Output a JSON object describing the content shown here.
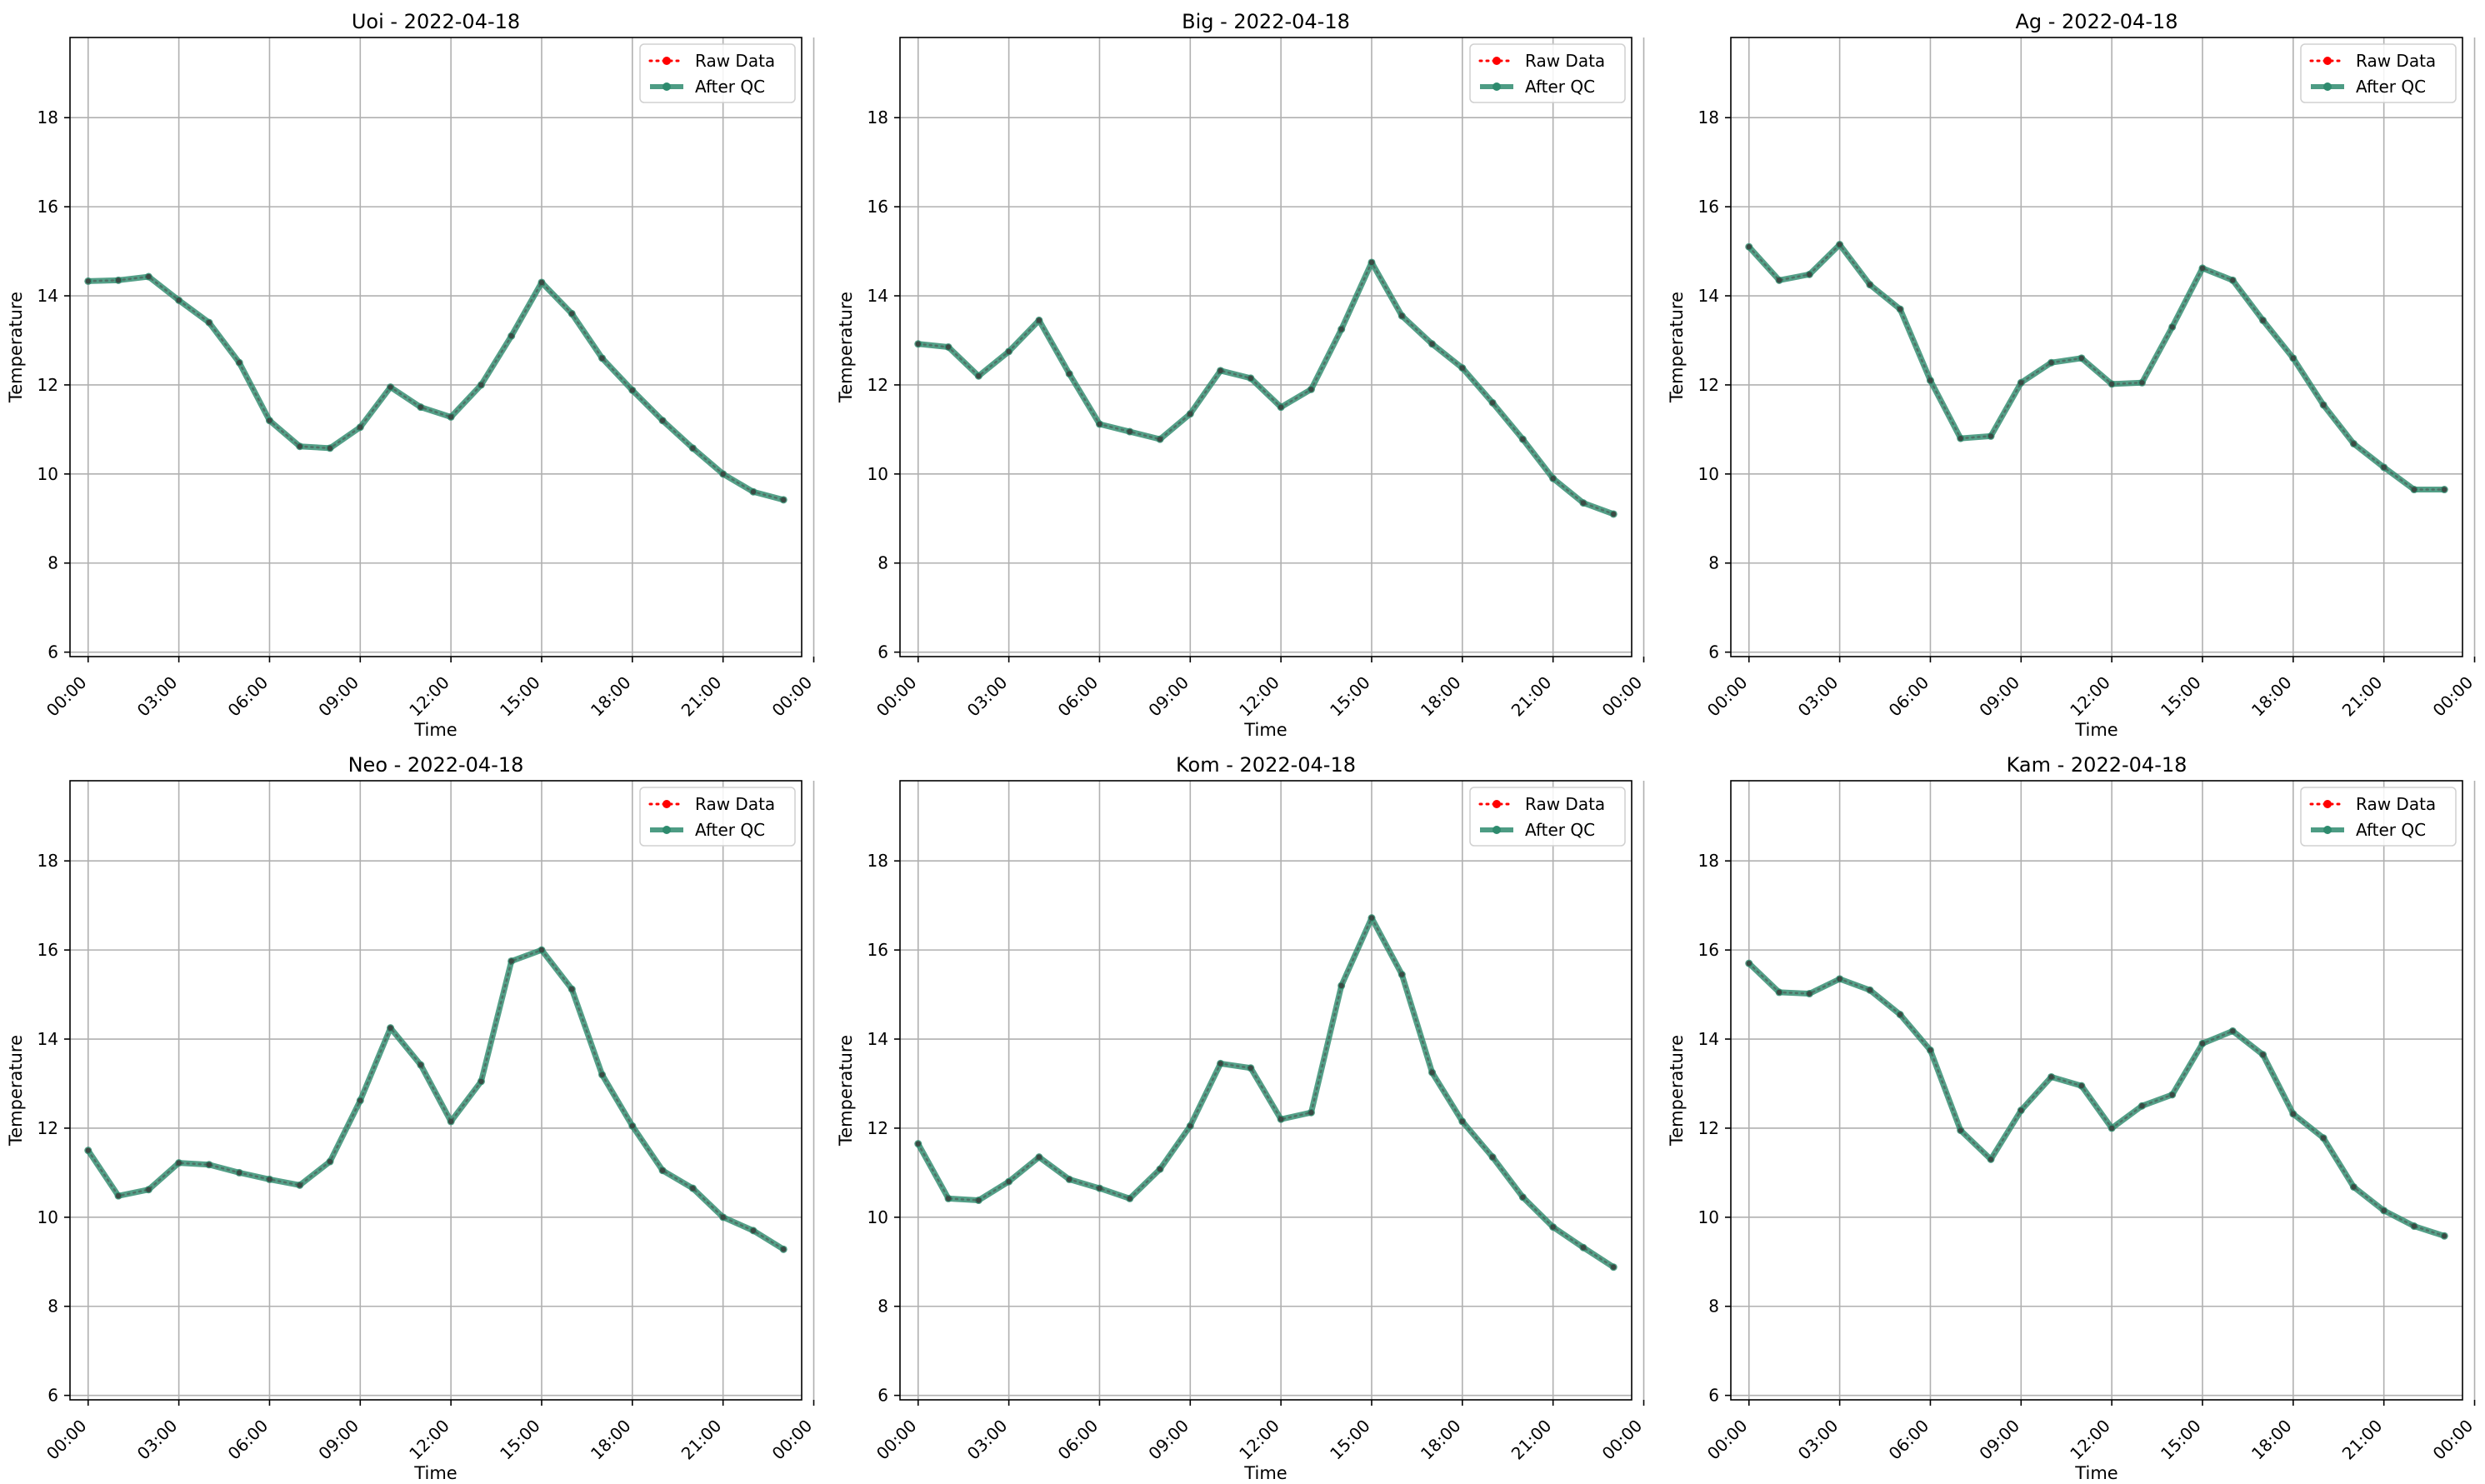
{
  "chart_data": [
    {
      "type": "line",
      "title": "Uoi - 2022-04-18",
      "xlabel": "Time",
      "ylabel": "Temperature",
      "ylim": [
        5.9,
        19.8
      ],
      "yticks": [
        6,
        8,
        10,
        12,
        14,
        16,
        18
      ],
      "xlim": [
        -0.6,
        23.6
      ],
      "xticks": [
        "00:00",
        "03:00",
        "06:00",
        "09:00",
        "12:00",
        "15:00",
        "18:00",
        "21:00",
        "00:00"
      ],
      "grid": true,
      "legend": "top-right",
      "x": [
        "00:00",
        "01:00",
        "02:00",
        "03:00",
        "04:00",
        "05:00",
        "06:00",
        "07:00",
        "08:00",
        "09:00",
        "10:00",
        "11:00",
        "12:00",
        "13:00",
        "14:00",
        "15:00",
        "16:00",
        "17:00",
        "18:00",
        "19:00",
        "20:00",
        "21:00",
        "22:00",
        "23:00"
      ],
      "series": [
        {
          "name": "Raw Data",
          "color": "#ff0000",
          "values": [
            14.33,
            14.35,
            14.43,
            13.9,
            13.4,
            12.5,
            11.2,
            10.62,
            10.58,
            11.05,
            11.95,
            11.5,
            11.28,
            12.0,
            13.1,
            14.3,
            13.6,
            12.6,
            11.88,
            11.2,
            10.58,
            10.0,
            9.6,
            9.42
          ]
        },
        {
          "name": "After QC",
          "color": "#2e8b6e",
          "values": [
            14.33,
            14.35,
            14.43,
            13.9,
            13.4,
            12.5,
            11.2,
            10.62,
            10.58,
            11.05,
            11.95,
            11.5,
            11.28,
            12.0,
            13.1,
            14.3,
            13.6,
            12.6,
            11.88,
            11.2,
            10.58,
            10.0,
            9.6,
            9.42
          ]
        }
      ]
    },
    {
      "type": "line",
      "title": "Big - 2022-04-18",
      "xlabel": "Time",
      "ylabel": "Temperature",
      "ylim": [
        5.9,
        19.8
      ],
      "yticks": [
        6,
        8,
        10,
        12,
        14,
        16,
        18
      ],
      "xlim": [
        -0.6,
        23.6
      ],
      "xticks": [
        "00:00",
        "03:00",
        "06:00",
        "09:00",
        "12:00",
        "15:00",
        "18:00",
        "21:00",
        "00:00"
      ],
      "grid": true,
      "legend": "top-right",
      "x": [
        "00:00",
        "01:00",
        "02:00",
        "03:00",
        "04:00",
        "05:00",
        "06:00",
        "07:00",
        "08:00",
        "09:00",
        "10:00",
        "11:00",
        "12:00",
        "13:00",
        "14:00",
        "15:00",
        "16:00",
        "17:00",
        "18:00",
        "19:00",
        "20:00",
        "21:00",
        "22:00",
        "23:00"
      ],
      "series": [
        {
          "name": "Raw Data",
          "color": "#ff0000",
          "values": [
            12.92,
            12.85,
            12.2,
            12.75,
            13.45,
            12.25,
            11.12,
            10.95,
            10.78,
            11.35,
            12.32,
            12.15,
            11.5,
            11.9,
            13.25,
            14.75,
            13.55,
            12.92,
            12.38,
            11.6,
            10.78,
            9.9,
            9.35,
            9.1
          ]
        },
        {
          "name": "After QC",
          "color": "#2e8b6e",
          "values": [
            12.92,
            12.85,
            12.2,
            12.75,
            13.45,
            12.25,
            11.12,
            10.95,
            10.78,
            11.35,
            12.32,
            12.15,
            11.5,
            11.9,
            13.25,
            14.75,
            13.55,
            12.92,
            12.38,
            11.6,
            10.78,
            9.9,
            9.35,
            9.1
          ]
        }
      ]
    },
    {
      "type": "line",
      "title": "Ag - 2022-04-18",
      "xlabel": "Time",
      "ylabel": "Temperature",
      "ylim": [
        5.9,
        19.8
      ],
      "yticks": [
        6,
        8,
        10,
        12,
        14,
        16,
        18
      ],
      "xlim": [
        -0.6,
        23.6
      ],
      "xticks": [
        "00:00",
        "03:00",
        "06:00",
        "09:00",
        "12:00",
        "15:00",
        "18:00",
        "21:00",
        "00:00"
      ],
      "grid": true,
      "legend": "top-right",
      "x": [
        "00:00",
        "01:00",
        "02:00",
        "03:00",
        "04:00",
        "05:00",
        "06:00",
        "07:00",
        "08:00",
        "09:00",
        "10:00",
        "11:00",
        "12:00",
        "13:00",
        "14:00",
        "15:00",
        "16:00",
        "17:00",
        "18:00",
        "19:00",
        "20:00",
        "21:00",
        "22:00",
        "23:00"
      ],
      "series": [
        {
          "name": "Raw Data",
          "color": "#ff0000",
          "values": [
            15.1,
            14.35,
            14.48,
            15.15,
            14.25,
            13.7,
            12.1,
            10.8,
            10.85,
            12.05,
            12.5,
            12.6,
            12.02,
            12.05,
            13.3,
            14.62,
            14.35,
            13.45,
            12.6,
            11.55,
            10.68,
            10.15,
            9.65,
            9.65
          ]
        },
        {
          "name": "After QC",
          "color": "#2e8b6e",
          "values": [
            15.1,
            14.35,
            14.48,
            15.15,
            14.25,
            13.7,
            12.1,
            10.8,
            10.85,
            12.05,
            12.5,
            12.6,
            12.02,
            12.05,
            13.3,
            14.62,
            14.35,
            13.45,
            12.6,
            11.55,
            10.68,
            10.15,
            9.65,
            9.65
          ]
        }
      ]
    },
    {
      "type": "line",
      "title": "Neo - 2022-04-18",
      "xlabel": "Time",
      "ylabel": "Temperature",
      "ylim": [
        5.9,
        19.8
      ],
      "yticks": [
        6,
        8,
        10,
        12,
        14,
        16,
        18
      ],
      "xlim": [
        -0.6,
        23.6
      ],
      "xticks": [
        "00:00",
        "03:00",
        "06:00",
        "09:00",
        "12:00",
        "15:00",
        "18:00",
        "21:00",
        "00:00"
      ],
      "grid": true,
      "legend": "top-right",
      "x": [
        "00:00",
        "01:00",
        "02:00",
        "03:00",
        "04:00",
        "05:00",
        "06:00",
        "07:00",
        "08:00",
        "09:00",
        "10:00",
        "11:00",
        "12:00",
        "13:00",
        "14:00",
        "15:00",
        "16:00",
        "17:00",
        "18:00",
        "19:00",
        "20:00",
        "21:00",
        "22:00",
        "23:00"
      ],
      "series": [
        {
          "name": "Raw Data",
          "color": "#ff0000",
          "values": [
            11.5,
            10.48,
            10.62,
            11.22,
            11.18,
            11.0,
            10.85,
            10.72,
            11.25,
            12.62,
            14.25,
            13.42,
            12.15,
            13.05,
            15.75,
            16.0,
            15.12,
            13.2,
            12.05,
            11.05,
            10.65,
            10.0,
            9.7,
            9.28
          ]
        },
        {
          "name": "After QC",
          "color": "#2e8b6e",
          "values": [
            11.5,
            10.48,
            10.62,
            11.22,
            11.18,
            11.0,
            10.85,
            10.72,
            11.25,
            12.62,
            14.25,
            13.42,
            12.15,
            13.05,
            15.75,
            16.0,
            15.12,
            13.2,
            12.05,
            11.05,
            10.65,
            10.0,
            9.7,
            9.28
          ]
        }
      ]
    },
    {
      "type": "line",
      "title": "Kom - 2022-04-18",
      "xlabel": "Time",
      "ylabel": "Temperature",
      "ylim": [
        5.9,
        19.8
      ],
      "yticks": [
        6,
        8,
        10,
        12,
        14,
        16,
        18
      ],
      "xlim": [
        -0.6,
        23.6
      ],
      "xticks": [
        "00:00",
        "03:00",
        "06:00",
        "09:00",
        "12:00",
        "15:00",
        "18:00",
        "21:00",
        "00:00"
      ],
      "grid": true,
      "legend": "top-right",
      "x": [
        "00:00",
        "01:00",
        "02:00",
        "03:00",
        "04:00",
        "05:00",
        "06:00",
        "07:00",
        "08:00",
        "09:00",
        "10:00",
        "11:00",
        "12:00",
        "13:00",
        "14:00",
        "15:00",
        "16:00",
        "17:00",
        "18:00",
        "19:00",
        "20:00",
        "21:00",
        "22:00",
        "23:00"
      ],
      "series": [
        {
          "name": "Raw Data",
          "color": "#ff0000",
          "values": [
            11.65,
            10.42,
            10.38,
            10.8,
            11.35,
            10.85,
            10.65,
            10.42,
            11.08,
            12.05,
            13.45,
            13.35,
            12.2,
            12.35,
            15.2,
            16.72,
            15.45,
            13.25,
            12.15,
            11.35,
            10.45,
            9.78,
            9.32,
            8.88
          ]
        },
        {
          "name": "After QC",
          "color": "#2e8b6e",
          "values": [
            11.65,
            10.42,
            10.38,
            10.8,
            11.35,
            10.85,
            10.65,
            10.42,
            11.08,
            12.05,
            13.45,
            13.35,
            12.2,
            12.35,
            15.2,
            16.72,
            15.45,
            13.25,
            12.15,
            11.35,
            10.45,
            9.78,
            9.32,
            8.88
          ]
        }
      ]
    },
    {
      "type": "line",
      "title": "Kam - 2022-04-18",
      "xlabel": "Time",
      "ylabel": "Temperature",
      "ylim": [
        5.9,
        19.8
      ],
      "yticks": [
        6,
        8,
        10,
        12,
        14,
        16,
        18
      ],
      "xlim": [
        -0.6,
        23.6
      ],
      "xticks": [
        "00:00",
        "03:00",
        "06:00",
        "09:00",
        "12:00",
        "15:00",
        "18:00",
        "21:00",
        "00:00"
      ],
      "grid": true,
      "legend": "top-right",
      "x": [
        "00:00",
        "01:00",
        "02:00",
        "03:00",
        "04:00",
        "05:00",
        "06:00",
        "07:00",
        "08:00",
        "09:00",
        "10:00",
        "11:00",
        "12:00",
        "13:00",
        "14:00",
        "15:00",
        "16:00",
        "17:00",
        "18:00",
        "19:00",
        "20:00",
        "21:00",
        "22:00",
        "23:00"
      ],
      "series": [
        {
          "name": "Raw Data",
          "color": "#ff0000",
          "values": [
            15.7,
            15.05,
            15.02,
            15.35,
            15.1,
            14.55,
            13.75,
            11.95,
            11.3,
            12.4,
            13.15,
            12.95,
            12.0,
            12.5,
            12.75,
            13.9,
            14.18,
            13.65,
            12.32,
            11.78,
            10.68,
            10.15,
            9.8,
            9.58
          ]
        },
        {
          "name": "After QC",
          "color": "#2e8b6e",
          "values": [
            15.7,
            15.05,
            15.02,
            15.35,
            15.1,
            14.55,
            13.75,
            11.95,
            11.3,
            12.4,
            13.15,
            12.95,
            12.0,
            12.5,
            12.75,
            13.9,
            14.18,
            13.65,
            12.32,
            11.78,
            10.68,
            10.15,
            9.8,
            9.58
          ]
        }
      ]
    }
  ]
}
